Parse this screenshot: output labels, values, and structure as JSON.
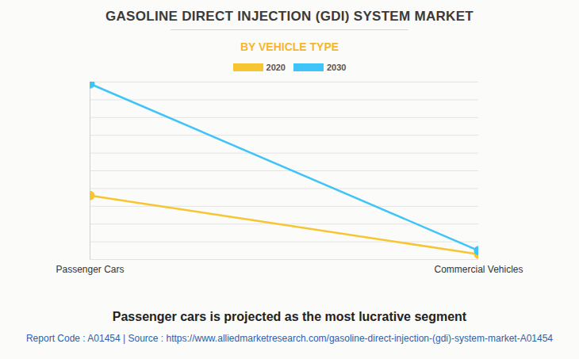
{
  "chart_data": {
    "type": "line",
    "title": "GASOLINE DIRECT INJECTION (GDI) SYSTEM MARKET",
    "subtitle": "BY VEHICLE TYPE",
    "caption": "Passenger cars is projected as the most lucrative segment",
    "source": "Report Code : A01454  |  Source : https://www.alliedmarketresearch.com/gasoline-direct-injection-(gdi)-system-market-A01454",
    "categories": [
      "Passenger Cars",
      "Commercial Vehicles"
    ],
    "series": [
      {
        "name": "2020",
        "color": "#f7c531",
        "values": [
          3.6,
          0.3
        ]
      },
      {
        "name": "2030",
        "color": "#3ec4f7",
        "values": [
          9.9,
          0.5
        ]
      }
    ],
    "ylim": [
      0,
      10
    ],
    "yticks": [
      0,
      1,
      2,
      3,
      4,
      5,
      6,
      7,
      8,
      9,
      10
    ],
    "grid": true,
    "tick_labels": "x",
    "marker": "circle",
    "legend": "top"
  }
}
